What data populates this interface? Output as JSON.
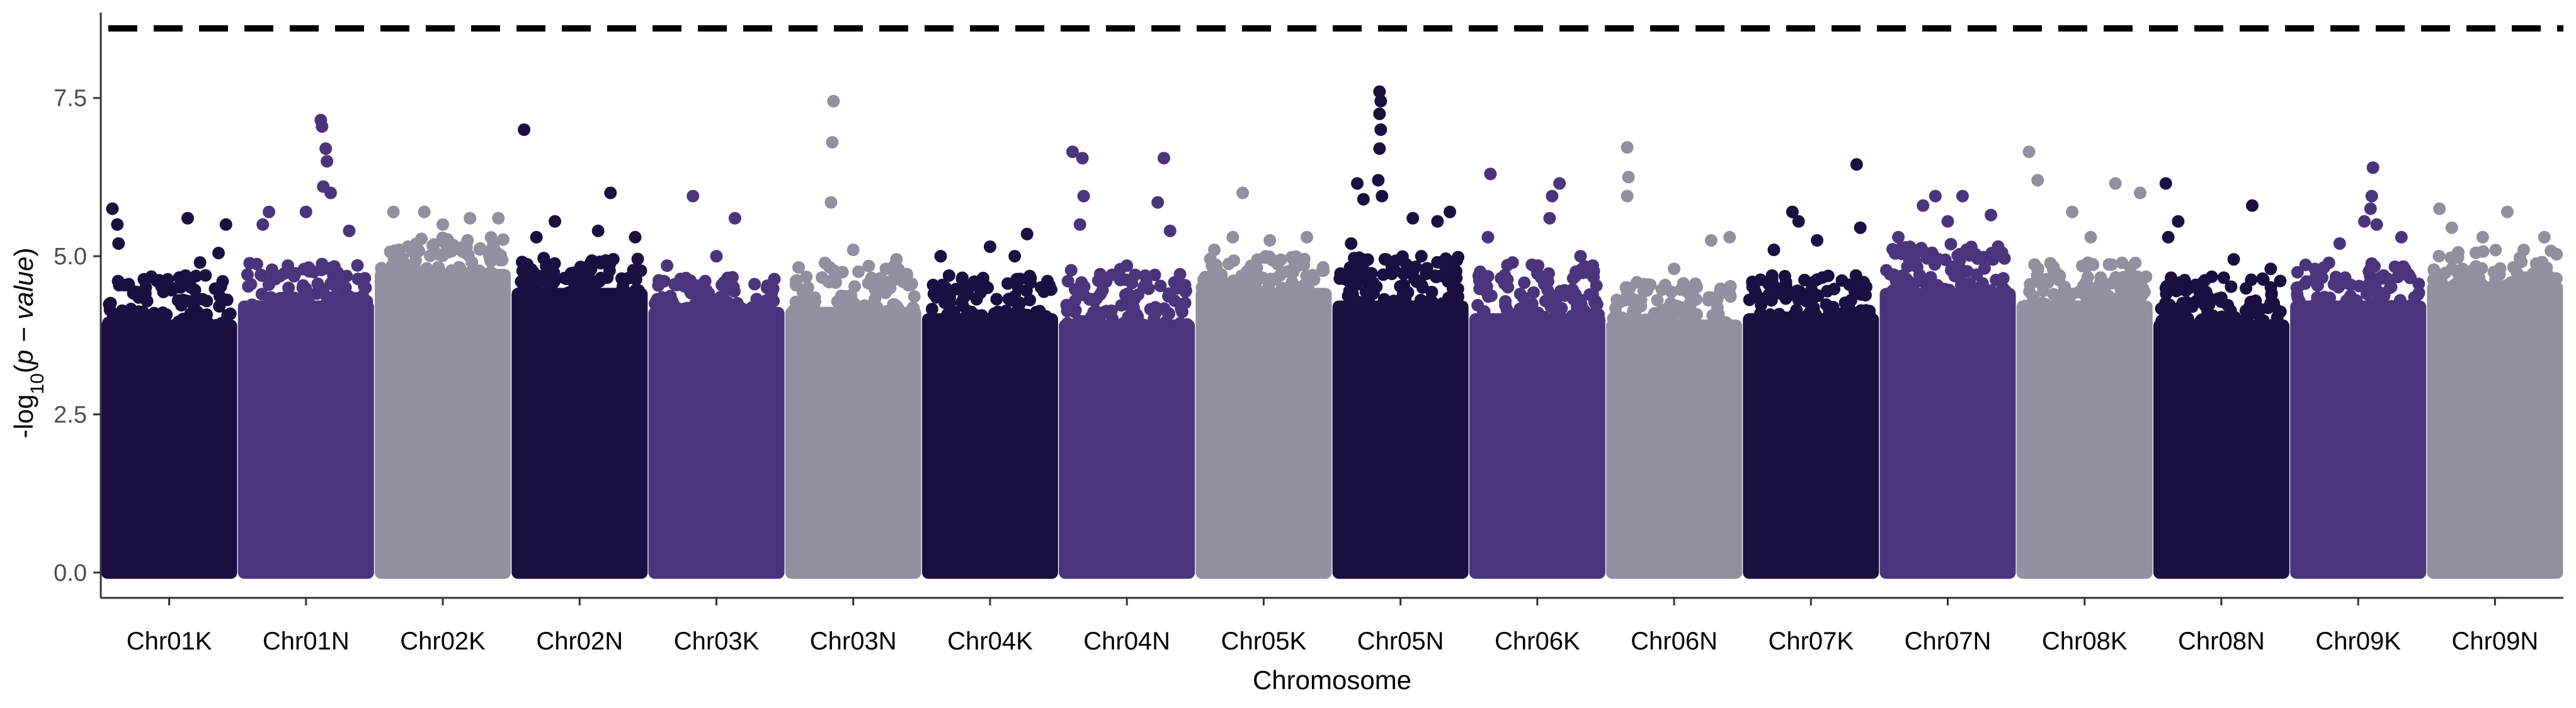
{
  "chart_data": {
    "type": "scatter",
    "xlabel": "Chromosome",
    "ylabel": {
      "prefix": "-log",
      "subscript": "10",
      "open": "(",
      "italic": "p − value",
      "close": ")"
    },
    "ylim": [
      -0.4,
      8.85
    ],
    "yticks": [
      "0.0",
      "2.5",
      "5.0",
      "7.5"
    ],
    "threshold": 8.6,
    "grid": false,
    "legend": "none",
    "palette": [
      "#1a0f40",
      "#4a357d",
      "#938f9e"
    ],
    "categories": [
      "Chr01K",
      "Chr01N",
      "Chr02K",
      "Chr02N",
      "Chr03K",
      "Chr03N",
      "Chr04K",
      "Chr04N",
      "Chr05K",
      "Chr05N",
      "Chr06K",
      "Chr06N",
      "Chr07K",
      "Chr07N",
      "Chr08K",
      "Chr08N",
      "Chr09K",
      "Chr09N"
    ],
    "series": [
      {
        "chrom": "Chr01K",
        "color_index": 0,
        "bulk_top": 4.0,
        "scatter_top": 4.7,
        "peaks": [
          [
            0.04,
            5.75
          ],
          [
            0.08,
            5.5
          ],
          [
            0.09,
            5.2
          ],
          [
            0.65,
            5.6
          ],
          [
            0.96,
            5.5
          ],
          [
            0.9,
            5.05
          ],
          [
            0.75,
            4.9
          ]
        ]
      },
      {
        "chrom": "Chr01N",
        "color_index": 1,
        "bulk_top": 4.3,
        "scatter_top": 4.9,
        "peaks": [
          [
            0.62,
            7.15
          ],
          [
            0.63,
            7.05
          ],
          [
            0.66,
            6.7
          ],
          [
            0.67,
            6.5
          ],
          [
            0.64,
            6.1
          ],
          [
            0.7,
            6.0
          ],
          [
            0.5,
            5.7
          ],
          [
            0.2,
            5.7
          ],
          [
            0.15,
            5.5
          ],
          [
            0.85,
            5.4
          ]
        ]
      },
      {
        "chrom": "Chr02K",
        "color_index": 2,
        "bulk_top": 4.8,
        "scatter_top": 5.3,
        "peaks": [
          [
            0.1,
            5.7
          ],
          [
            0.35,
            5.7
          ],
          [
            0.72,
            5.6
          ],
          [
            0.95,
            5.6
          ],
          [
            0.5,
            5.5
          ]
        ]
      },
      {
        "chrom": "Chr02N",
        "color_index": 0,
        "bulk_top": 4.5,
        "scatter_top": 5.0,
        "peaks": [
          [
            0.05,
            7.0
          ],
          [
            0.75,
            6.0
          ],
          [
            0.3,
            5.55
          ],
          [
            0.15,
            5.3
          ],
          [
            0.95,
            5.3
          ],
          [
            0.65,
            5.4
          ]
        ]
      },
      {
        "chrom": "Chr03K",
        "color_index": 1,
        "bulk_top": 4.2,
        "scatter_top": 4.7,
        "peaks": [
          [
            0.31,
            5.95
          ],
          [
            0.65,
            5.6
          ],
          [
            0.1,
            4.85
          ],
          [
            0.5,
            5.0
          ]
        ]
      },
      {
        "chrom": "Chr03N",
        "color_index": 2,
        "bulk_top": 4.2,
        "scatter_top": 4.9,
        "peaks": [
          [
            0.34,
            7.45
          ],
          [
            0.33,
            6.8
          ],
          [
            0.32,
            5.85
          ],
          [
            0.5,
            5.1
          ],
          [
            0.85,
            4.95
          ]
        ]
      },
      {
        "chrom": "Chr04K",
        "color_index": 0,
        "bulk_top": 4.1,
        "scatter_top": 4.7,
        "peaks": [
          [
            0.5,
            5.15
          ],
          [
            0.8,
            5.35
          ],
          [
            0.1,
            5.0
          ],
          [
            0.7,
            5.0
          ]
        ]
      },
      {
        "chrom": "Chr04N",
        "color_index": 1,
        "bulk_top": 4.0,
        "scatter_top": 4.8,
        "peaks": [
          [
            0.06,
            6.65
          ],
          [
            0.14,
            6.55
          ],
          [
            0.8,
            6.55
          ],
          [
            0.15,
            5.95
          ],
          [
            0.75,
            5.85
          ],
          [
            0.12,
            5.5
          ],
          [
            0.85,
            5.4
          ],
          [
            0.5,
            4.85
          ]
        ]
      },
      {
        "chrom": "Chr05K",
        "color_index": 2,
        "bulk_top": 4.5,
        "scatter_top": 5.0,
        "peaks": [
          [
            0.33,
            6.0
          ],
          [
            0.25,
            5.3
          ],
          [
            0.55,
            5.25
          ],
          [
            0.85,
            5.3
          ],
          [
            0.1,
            5.1
          ]
        ]
      },
      {
        "chrom": "Chr05N",
        "color_index": 0,
        "bulk_top": 4.3,
        "scatter_top": 5.0,
        "peaks": [
          [
            0.33,
            7.6
          ],
          [
            0.34,
            7.45
          ],
          [
            0.33,
            7.25
          ],
          [
            0.34,
            7.0
          ],
          [
            0.33,
            6.7
          ],
          [
            0.15,
            6.15
          ],
          [
            0.2,
            5.9
          ],
          [
            0.32,
            6.2
          ],
          [
            0.35,
            5.95
          ],
          [
            0.6,
            5.6
          ],
          [
            0.8,
            5.55
          ],
          [
            0.9,
            5.7
          ],
          [
            0.1,
            5.2
          ]
        ]
      },
      {
        "chrom": "Chr06K",
        "color_index": 1,
        "bulk_top": 4.1,
        "scatter_top": 4.9,
        "peaks": [
          [
            0.12,
            6.3
          ],
          [
            0.68,
            6.15
          ],
          [
            0.62,
            5.95
          ],
          [
            0.6,
            5.6
          ],
          [
            0.1,
            5.3
          ],
          [
            0.3,
            4.9
          ],
          [
            0.85,
            5.0
          ]
        ]
      },
      {
        "chrom": "Chr06N",
        "color_index": 2,
        "bulk_top": 4.0,
        "scatter_top": 4.6,
        "peaks": [
          [
            0.12,
            6.72
          ],
          [
            0.13,
            6.25
          ],
          [
            0.12,
            5.95
          ],
          [
            0.8,
            5.25
          ],
          [
            0.95,
            5.3
          ],
          [
            0.5,
            4.8
          ]
        ]
      },
      {
        "chrom": "Chr07K",
        "color_index": 0,
        "bulk_top": 4.1,
        "scatter_top": 4.7,
        "peaks": [
          [
            0.87,
            6.45
          ],
          [
            0.35,
            5.7
          ],
          [
            0.4,
            5.55
          ],
          [
            0.55,
            5.25
          ],
          [
            0.9,
            5.45
          ],
          [
            0.2,
            5.1
          ]
        ]
      },
      {
        "chrom": "Chr07N",
        "color_index": 1,
        "bulk_top": 4.5,
        "scatter_top": 5.2,
        "peaks": [
          [
            0.4,
            5.95
          ],
          [
            0.62,
            5.95
          ],
          [
            0.85,
            5.65
          ],
          [
            0.3,
            5.8
          ],
          [
            0.5,
            5.55
          ],
          [
            0.1,
            5.3
          ]
        ]
      },
      {
        "chrom": "Chr08K",
        "color_index": 2,
        "bulk_top": 4.3,
        "scatter_top": 4.9,
        "peaks": [
          [
            0.05,
            6.65
          ],
          [
            0.12,
            6.2
          ],
          [
            0.75,
            6.15
          ],
          [
            0.95,
            6.0
          ],
          [
            0.4,
            5.7
          ],
          [
            0.55,
            5.3
          ]
        ]
      },
      {
        "chrom": "Chr08N",
        "color_index": 0,
        "bulk_top": 4.0,
        "scatter_top": 4.7,
        "peaks": [
          [
            0.05,
            6.15
          ],
          [
            0.07,
            5.3
          ],
          [
            0.15,
            5.55
          ],
          [
            0.75,
            5.8
          ],
          [
            0.9,
            4.8
          ],
          [
            0.6,
            4.95
          ]
        ]
      },
      {
        "chrom": "Chr09K",
        "color_index": 1,
        "bulk_top": 4.3,
        "scatter_top": 4.9,
        "peaks": [
          [
            0.62,
            6.4
          ],
          [
            0.61,
            5.95
          ],
          [
            0.6,
            5.75
          ],
          [
            0.55,
            5.55
          ],
          [
            0.65,
            5.5
          ],
          [
            0.35,
            5.2
          ],
          [
            0.85,
            5.3
          ]
        ]
      },
      {
        "chrom": "Chr09N",
        "color_index": 2,
        "bulk_top": 4.6,
        "scatter_top": 5.1,
        "peaks": [
          [
            0.05,
            5.75
          ],
          [
            0.6,
            5.7
          ],
          [
            0.15,
            5.45
          ],
          [
            0.9,
            5.3
          ],
          [
            0.4,
            5.3
          ]
        ]
      }
    ]
  }
}
